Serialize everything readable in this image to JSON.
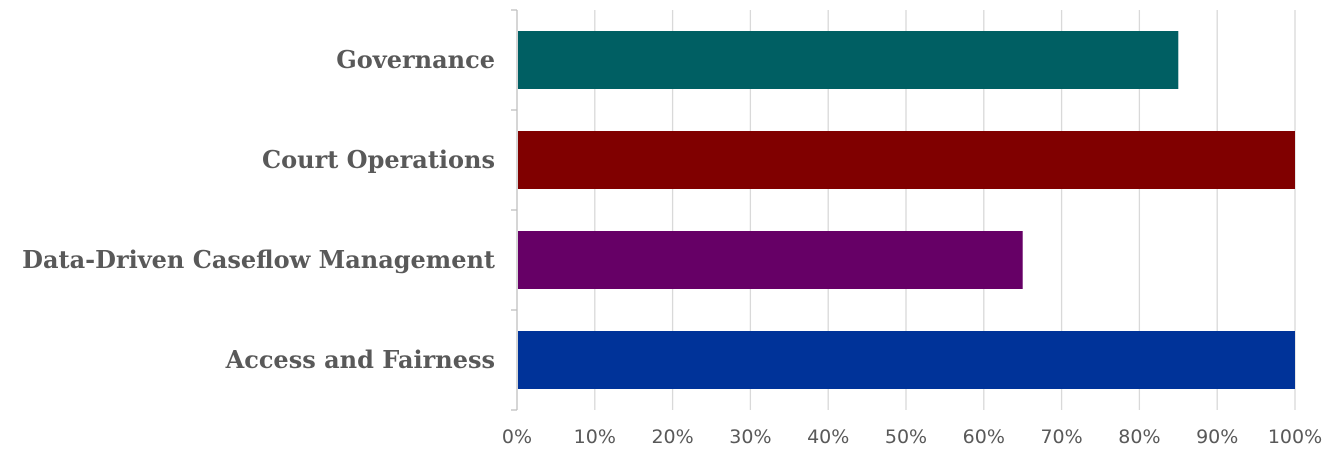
{
  "chart_data": {
    "type": "bar",
    "orientation": "horizontal",
    "title": "",
    "xlabel": "",
    "ylabel": "",
    "categories": [
      "Governance",
      "Court Operations",
      "Data-Driven Caseflow Management",
      "Access and Fairness"
    ],
    "values": [
      0.85,
      1.0,
      0.65,
      1.0
    ],
    "colors": [
      "#005F63",
      "#800000",
      "#660066",
      "#003399"
    ],
    "xlim": [
      0,
      1
    ],
    "x_ticks": [
      0,
      0.1,
      0.2,
      0.3,
      0.4,
      0.5,
      0.6,
      0.7,
      0.8,
      0.9,
      1.0
    ],
    "x_tick_labels": [
      "0%",
      "10%",
      "20%",
      "30%",
      "40%",
      "50%",
      "60%",
      "70%",
      "80%",
      "90%",
      "100%"
    ],
    "grid": true,
    "legend": "none"
  }
}
